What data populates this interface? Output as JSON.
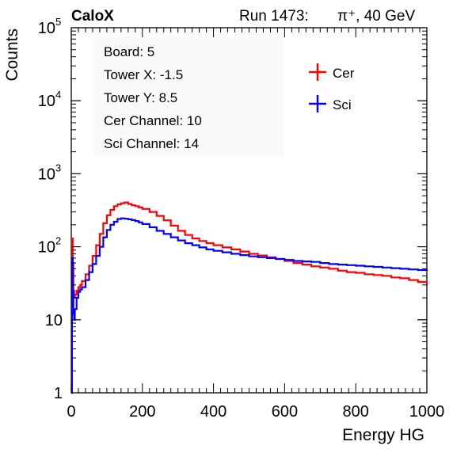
{
  "header": {
    "experiment": "CaloX",
    "run_label": "Run 1473:",
    "particle": "π⁺, 40 GeV"
  },
  "info_box": {
    "lines": [
      "Board: 5",
      "Tower X: -1.5",
      "Tower Y: 8.5",
      "Cer Channel: 10",
      "Sci Channel: 14"
    ]
  },
  "chart_data": {
    "type": "line",
    "xlabel": "Energy HG",
    "ylabel": "Counts",
    "xlim": [
      0,
      1000
    ],
    "ylim": [
      1,
      100000
    ],
    "y_scale": "log",
    "x_ticks": [
      0,
      200,
      400,
      600,
      800,
      1000
    ],
    "y_tick_labels": [
      {
        "value": 1,
        "mantissa": "1",
        "exp": ""
      },
      {
        "value": 10,
        "mantissa": "10",
        "exp": ""
      },
      {
        "value": 100,
        "mantissa": "10",
        "exp": "2"
      },
      {
        "value": 1000,
        "mantissa": "10",
        "exp": "3"
      },
      {
        "value": 10000,
        "mantissa": "10",
        "exp": "4"
      },
      {
        "value": 100000,
        "mantissa": "10",
        "exp": "5"
      }
    ],
    "grid": false,
    "legend_position": "top-right",
    "series": [
      {
        "name": "Cer",
        "color": "#ff0000",
        "x": [
          0,
          2,
          4,
          6,
          8,
          10,
          15,
          20,
          25,
          30,
          40,
          50,
          60,
          70,
          80,
          90,
          100,
          110,
          120,
          130,
          140,
          150,
          160,
          170,
          180,
          190,
          200,
          220,
          240,
          260,
          280,
          300,
          320,
          340,
          360,
          380,
          400,
          425,
          450,
          475,
          500,
          525,
          550,
          575,
          600,
          625,
          650,
          675,
          700,
          725,
          750,
          775,
          800,
          825,
          850,
          875,
          900,
          925,
          950,
          975,
          1000
        ],
        "y": [
          1,
          130,
          60,
          25,
          20,
          22,
          25,
          28,
          30,
          34,
          42,
          55,
          75,
          105,
          150,
          210,
          270,
          320,
          360,
          380,
          395,
          405,
          385,
          370,
          360,
          345,
          330,
          300,
          265,
          230,
          195,
          165,
          145,
          130,
          120,
          112,
          105,
          98,
          92,
          86,
          80,
          76,
          72,
          68,
          64,
          60,
          57,
          54,
          52,
          50,
          47,
          45,
          44,
          42,
          41,
          40,
          38,
          37,
          35,
          33,
          30
        ]
      },
      {
        "name": "Sci",
        "color": "#0000ff",
        "x": [
          0,
          2,
          4,
          6,
          8,
          10,
          15,
          20,
          25,
          30,
          40,
          50,
          60,
          70,
          80,
          90,
          100,
          110,
          120,
          130,
          140,
          150,
          160,
          170,
          180,
          190,
          200,
          220,
          240,
          260,
          280,
          300,
          320,
          340,
          360,
          380,
          400,
          425,
          450,
          475,
          500,
          525,
          550,
          575,
          600,
          625,
          650,
          675,
          700,
          725,
          750,
          775,
          800,
          825,
          850,
          875,
          900,
          925,
          950,
          975,
          1000
        ],
        "y": [
          1,
          70,
          25,
          12,
          10,
          14,
          20,
          24,
          26,
          28,
          35,
          45,
          58,
          75,
          100,
          135,
          170,
          200,
          220,
          240,
          245,
          242,
          238,
          232,
          225,
          215,
          205,
          185,
          165,
          150,
          135,
          122,
          112,
          105,
          98,
          92,
          88,
          84,
          80,
          77,
          74,
          72,
          70,
          68,
          66,
          64,
          63,
          62,
          60,
          58,
          57,
          56,
          55,
          54,
          53,
          52,
          51,
          50,
          49,
          48,
          47
        ]
      }
    ]
  }
}
